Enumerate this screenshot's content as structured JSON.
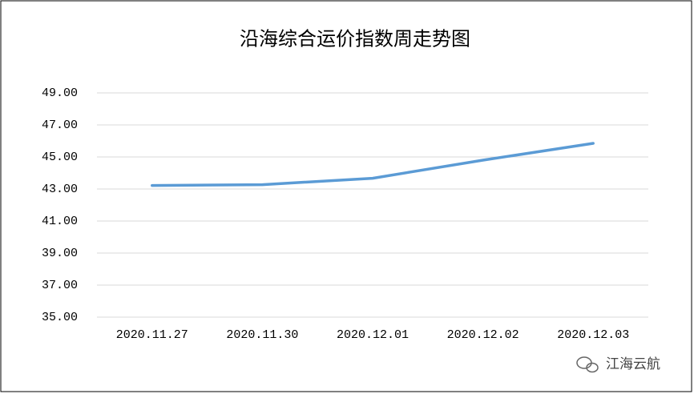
{
  "chart_data": {
    "type": "line",
    "title": "沿海综合运价指数周走势图",
    "categories": [
      "2020.11.27",
      "2020.11.30",
      "2020.12.01",
      "2020.12.02",
      "2020.12.03"
    ],
    "series": [
      {
        "name": "沿海综合运价指数",
        "color": "#5b9bd5",
        "values": [
          43.22,
          43.27,
          43.67,
          44.8,
          45.85
        ]
      }
    ],
    "ylim": [
      35,
      49
    ],
    "yticks": [
      {
        "value": 35,
        "label": "35.00"
      },
      {
        "value": 37,
        "label": "37.00"
      },
      {
        "value": 39,
        "label": "39.00"
      },
      {
        "value": 41,
        "label": "41.00"
      },
      {
        "value": 43,
        "label": "43.00"
      },
      {
        "value": 45,
        "label": "45.00"
      },
      {
        "value": 47,
        "label": "47.00"
      },
      {
        "value": 49,
        "label": "49.00"
      }
    ],
    "grid": true,
    "watermark": "江海云航"
  }
}
